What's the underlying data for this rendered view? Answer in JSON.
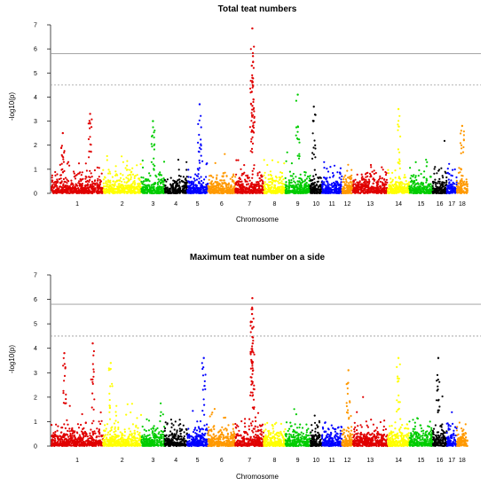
{
  "chart_data": [
    {
      "type": "scatter",
      "title": "Total teat numbers",
      "xlabel": "Chromosome",
      "ylabel": "-log10(p)",
      "ylim": [
        0,
        7
      ],
      "yticks": [
        0,
        1,
        2,
        3,
        4,
        5,
        6,
        7
      ],
      "thresholds": [
        {
          "value": 5.8,
          "style": "solid"
        },
        {
          "value": 4.5,
          "style": "dashed"
        }
      ],
      "chromosomes": [
        "1",
        "2",
        "3",
        "4",
        "5",
        "6",
        "7",
        "8",
        "9",
        "10",
        "11",
        "12",
        "13",
        "14",
        "15",
        "16",
        "17",
        "18"
      ],
      "chromosome_colors": [
        "#e00000",
        "#ffff00",
        "#00cc00",
        "#000000",
        "#0000ff",
        "#ff9900",
        "#e00000",
        "#ffff00",
        "#00cc00",
        "#000000",
        "#0000ff",
        "#ff9900",
        "#e00000",
        "#ffff00",
        "#00cc00",
        "#000000",
        "#0000ff",
        "#ff9900"
      ],
      "peaks": [
        {
          "chr": "1",
          "p": 0.22,
          "y": 2.5
        },
        {
          "chr": "1",
          "p": 0.75,
          "y": 3.3
        },
        {
          "chr": "3",
          "p": 0.5,
          "y": 3.0
        },
        {
          "chr": "5",
          "p": 0.6,
          "y": 3.7
        },
        {
          "chr": "7",
          "p": 0.6,
          "y": 6.85
        },
        {
          "chr": "7",
          "p": 0.62,
          "y": 5.7
        },
        {
          "chr": "7",
          "p": 0.58,
          "y": 5.3
        },
        {
          "chr": "7",
          "p": 0.6,
          "y": 4.8
        },
        {
          "chr": "9",
          "p": 0.5,
          "y": 4.1
        },
        {
          "chr": "10",
          "p": 0.3,
          "y": 3.6
        },
        {
          "chr": "14",
          "p": 0.5,
          "y": 3.5
        },
        {
          "chr": "18",
          "p": 0.5,
          "y": 2.8
        }
      ]
    },
    {
      "type": "scatter",
      "title": "Maximum teat number on a side",
      "xlabel": "Chromosome",
      "ylabel": "-log10(p)",
      "ylim": [
        0,
        7
      ],
      "yticks": [
        0,
        1,
        2,
        3,
        4,
        5,
        6,
        7
      ],
      "thresholds": [
        {
          "value": 5.8,
          "style": "solid"
        },
        {
          "value": 4.5,
          "style": "dashed"
        }
      ],
      "chromosomes": [
        "1",
        "2",
        "3",
        "4",
        "5",
        "6",
        "7",
        "8",
        "9",
        "10",
        "11",
        "12",
        "13",
        "14",
        "15",
        "16",
        "17",
        "18"
      ],
      "chromosome_colors": [
        "#e00000",
        "#ffff00",
        "#00cc00",
        "#000000",
        "#0000ff",
        "#ff9900",
        "#e00000",
        "#ffff00",
        "#00cc00",
        "#000000",
        "#0000ff",
        "#ff9900",
        "#e00000",
        "#ffff00",
        "#00cc00",
        "#000000",
        "#0000ff",
        "#ff9900"
      ],
      "peaks": [
        {
          "chr": "1",
          "p": 0.25,
          "y": 3.8
        },
        {
          "chr": "1",
          "p": 0.8,
          "y": 4.2
        },
        {
          "chr": "2",
          "p": 0.2,
          "y": 3.4
        },
        {
          "chr": "5",
          "p": 0.8,
          "y": 3.6
        },
        {
          "chr": "7",
          "p": 0.6,
          "y": 6.05
        },
        {
          "chr": "7",
          "p": 0.6,
          "y": 5.6
        },
        {
          "chr": "7",
          "p": 0.59,
          "y": 5.4
        },
        {
          "chr": "7",
          "p": 0.61,
          "y": 4.2
        },
        {
          "chr": "12",
          "p": 0.6,
          "y": 3.1
        },
        {
          "chr": "14",
          "p": 0.5,
          "y": 3.6
        },
        {
          "chr": "16",
          "p": 0.4,
          "y": 3.6
        }
      ]
    }
  ]
}
